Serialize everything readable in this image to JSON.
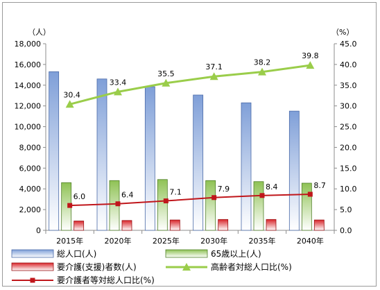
{
  "chart_data": {
    "type": "bar",
    "categories": [
      "2015年",
      "2020年",
      "2025年",
      "2030年",
      "2035年",
      "2040年"
    ],
    "left_axis": {
      "unit": "（人）",
      "ylim": [
        0,
        18000
      ],
      "ticks": [
        "0",
        "2,000",
        "4,000",
        "6,000",
        "8,000",
        "10,000",
        "12,000",
        "14,000",
        "16,000",
        "18,000"
      ]
    },
    "right_axis": {
      "unit": "（%）",
      "ylim": [
        0,
        45
      ],
      "ticks": [
        "0.0",
        "5.0",
        "10.0",
        "15.0",
        "20.0",
        "25.0",
        "30.0",
        "35.0",
        "40.0",
        "45.0"
      ]
    },
    "series": [
      {
        "name": "総人口(人)",
        "kind": "bar",
        "axis": "left",
        "color": "#7f9fd8",
        "values": [
          15300,
          14600,
          13850,
          13050,
          12300,
          11500
        ]
      },
      {
        "name": "65歳以上(人)",
        "kind": "bar",
        "axis": "left",
        "color": "#8fc255",
        "values": [
          4600,
          4800,
          4900,
          4800,
          4700,
          4550
        ]
      },
      {
        "name": "要介護(支援)者数(人)",
        "kind": "bar",
        "axis": "left",
        "color": "#d9262b",
        "values": [
          900,
          950,
          1000,
          1050,
          1050,
          1000
        ]
      },
      {
        "name": "高齢者対総人口比(%)",
        "kind": "line",
        "axis": "right",
        "color": "#9acd4a",
        "marker": "triangle",
        "values": [
          30.4,
          33.4,
          35.5,
          37.1,
          38.2,
          39.8
        ],
        "labels": [
          "30.4",
          "33.4",
          "35.5",
          "37.1",
          "38.2",
          "39.8"
        ]
      },
      {
        "name": "要介護者等対総人口比(%)",
        "kind": "line",
        "axis": "right",
        "color": "#c0161b",
        "marker": "square",
        "values": [
          6.0,
          6.4,
          7.1,
          7.9,
          8.4,
          8.7
        ],
        "labels": [
          "6.0",
          "6.4",
          "7.1",
          "7.9",
          "8.4",
          "8.7"
        ]
      }
    ],
    "grid": false,
    "legend_position": "bottom"
  }
}
